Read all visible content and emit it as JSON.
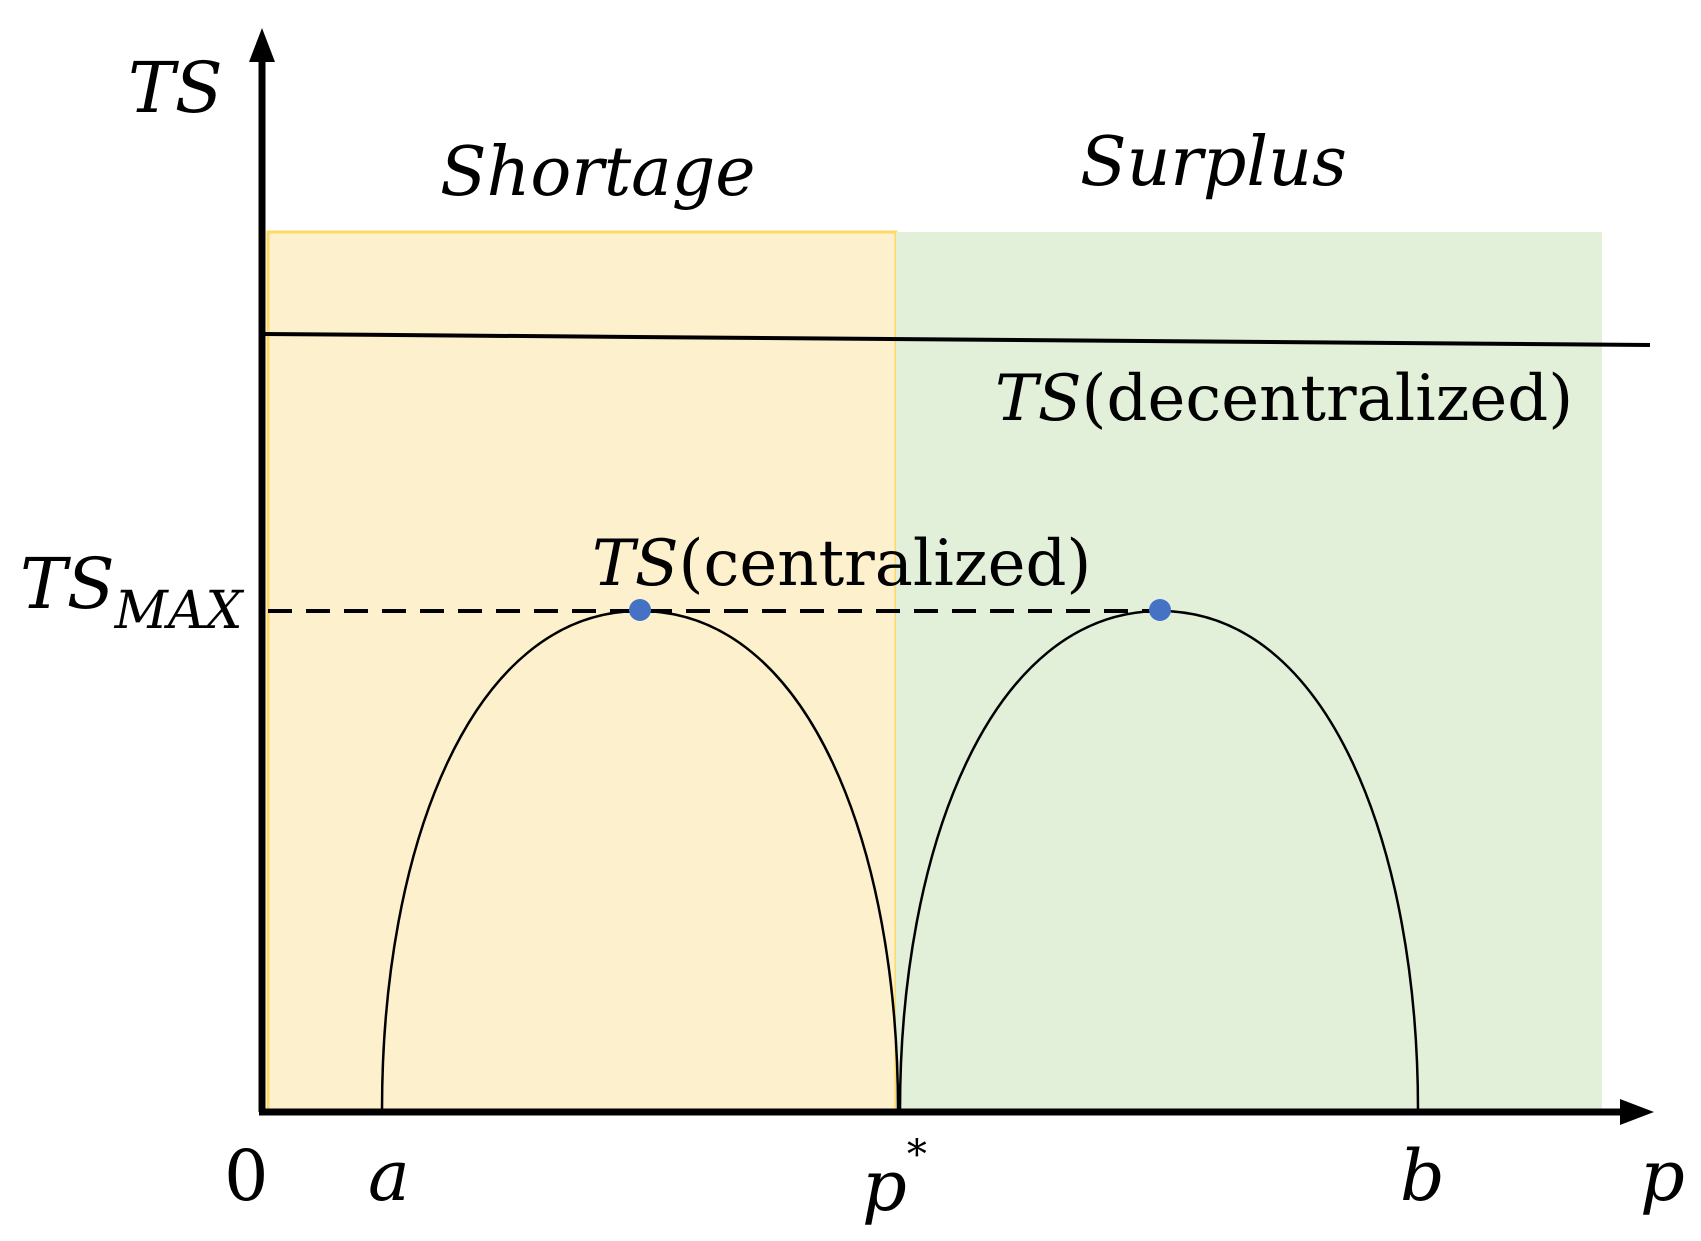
{
  "axes": {
    "y_label": "TS",
    "x_label": "p",
    "origin_label": "0",
    "ts_max_label": {
      "main": "TS",
      "sub": "MAX"
    }
  },
  "regions": {
    "shortage": {
      "label": "Shortage",
      "color": "#fdf0cc"
    },
    "surplus": {
      "label": "Surplus",
      "color": "#e2efd9"
    }
  },
  "x_ticks": {
    "a": "a",
    "p_star": {
      "main": "p",
      "sup": "*"
    },
    "b": "b"
  },
  "curve_labels": {
    "decentralized": {
      "italic": "TS",
      "roman": "(decentralized)"
    },
    "centralized": {
      "italic": "TS",
      "roman": "(centralized)"
    }
  },
  "colors": {
    "axis": "#000000",
    "curve": "#000000",
    "peak_dot": "#4472c4",
    "shortage_border": "#ffd966"
  }
}
